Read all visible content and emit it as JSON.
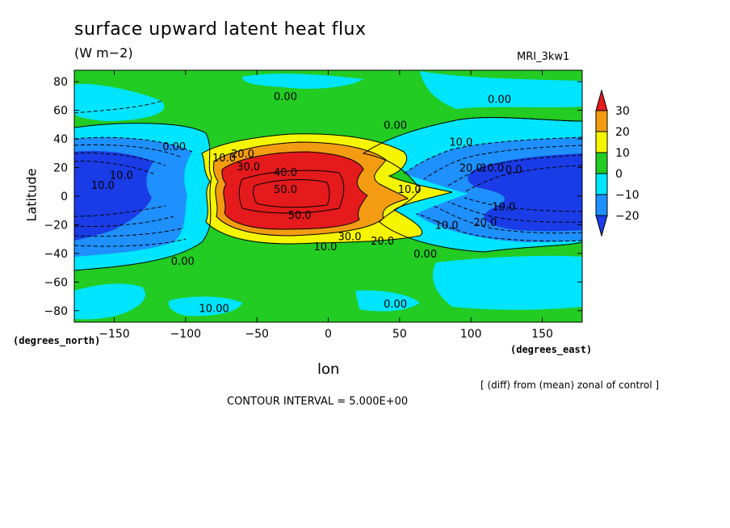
{
  "title": "surface upward latent heat flux",
  "units": "(W m−2)",
  "model": "MRI_3kw1",
  "note": "[ (diff) from (mean) zonal of control ]",
  "contour_interval": "CONTOUR INTERVAL = 5.000E+00",
  "chart_data": {
    "type": "heatmap",
    "title": "surface upward latent heat flux",
    "subtitle": "(W m−2)",
    "xlabel": "lon",
    "ylabel": "Latitude",
    "x_units": "(degrees_east)",
    "y_units": "(degrees_north)",
    "xlim": [
      -178,
      178
    ],
    "ylim": [
      -88,
      88
    ],
    "x_ticks": [
      -150,
      -100,
      -50,
      0,
      50,
      100,
      150
    ],
    "y_ticks": [
      80,
      60,
      40,
      20,
      0,
      -20,
      -40,
      -60,
      -80
    ],
    "x_tick_labels": [
      "−150",
      "−100",
      "−50",
      "0",
      "50",
      "100",
      "150"
    ],
    "y_tick_labels": [
      "80",
      "60",
      "40",
      "20",
      "0",
      "−20",
      "−40",
      "−60",
      "−80"
    ],
    "colorbar": {
      "labels": [
        "30",
        "20",
        "10",
        "0",
        "−10",
        "−20"
      ],
      "levels": [
        30,
        20,
        10,
        0,
        -10,
        -20
      ],
      "colors": [
        "#e41a1c",
        "#f39c12",
        "#f5f500",
        "#22cc22",
        "#00e5ff",
        "#1e90ff",
        "#1a3ce6"
      ]
    },
    "contour_labels": [
      {
        "lon": -30,
        "lat": 70,
        "text": "0.00"
      },
      {
        "lon": 120,
        "lat": 68,
        "text": "0.00"
      },
      {
        "lon": 47,
        "lat": 50,
        "text": "0.00"
      },
      {
        "lon": -108,
        "lat": 35,
        "text": "0.00"
      },
      {
        "lon": 93,
        "lat": 38,
        "text": "10.0"
      },
      {
        "lon": -145,
        "lat": 15,
        "text": "10.0"
      },
      {
        "lon": -158,
        "lat": 8,
        "text": "10.0"
      },
      {
        "lon": -73,
        "lat": 27,
        "text": "10.0"
      },
      {
        "lon": -60,
        "lat": 30,
        "text": "20.0"
      },
      {
        "lon": -56,
        "lat": 21,
        "text": "30.0"
      },
      {
        "lon": -30,
        "lat": 17,
        "text": "40.0"
      },
      {
        "lon": -30,
        "lat": 5,
        "text": "50.0"
      },
      {
        "lon": -20,
        "lat": -13,
        "text": "50.0"
      },
      {
        "lon": 15,
        "lat": -28,
        "text": "30.0"
      },
      {
        "lon": 38,
        "lat": -31,
        "text": "20.0"
      },
      {
        "lon": -2,
        "lat": -35,
        "text": "10.0"
      },
      {
        "lon": 57,
        "lat": 5,
        "text": "10.0"
      },
      {
        "lon": 100,
        "lat": 20,
        "text": "20.0"
      },
      {
        "lon": 115,
        "lat": 20,
        "text": "10.0"
      },
      {
        "lon": 130,
        "lat": 19,
        "text": "0.0"
      },
      {
        "lon": 83,
        "lat": -20,
        "text": "10.0"
      },
      {
        "lon": 110,
        "lat": -18,
        "text": "20.0"
      },
      {
        "lon": 123,
        "lat": -7,
        "text": "10.0"
      },
      {
        "lon": 68,
        "lat": -40,
        "text": "0.00"
      },
      {
        "lon": -102,
        "lat": -45,
        "text": "0.00"
      },
      {
        "lon": 47,
        "lat": -75,
        "text": "0.00"
      },
      {
        "lon": -80,
        "lat": -78,
        "text": "10.00"
      }
    ]
  }
}
